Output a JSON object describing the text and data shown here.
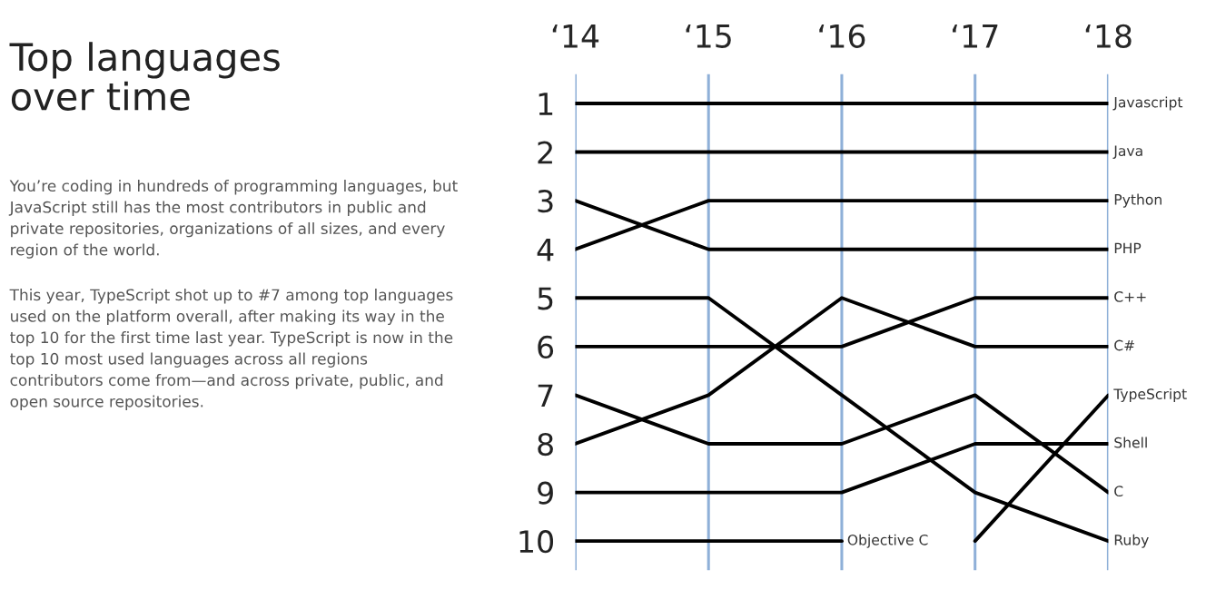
{
  "chart_data": {
    "type": "line",
    "title": "Top languages over time",
    "annotations": [
      "You’re coding in hundreds of programming languages, but JavaScript still has the most contributors in public and private repositories, organizations of all sizes, and every region of the world.",
      "This year, TypeScript shot up to #7 among top languages used on the platform overall, after making its way in the top 10 for the first time last year. TypeScript is now in the top 10 most used languages across all regions contributors come from—and across private, public, and open source repositories."
    ],
    "categories": [
      "‘14",
      "‘15",
      "‘16",
      "‘17",
      "‘18"
    ],
    "ylim": [
      10.6,
      0.4
    ],
    "yticks": [
      1,
      2,
      3,
      4,
      5,
      6,
      7,
      8,
      9,
      10
    ],
    "grid": "x",
    "legend": false,
    "marker": "none",
    "line_style": "solid",
    "series": [
      {
        "name": "Javascript",
        "color": "#000000",
        "values": [
          1,
          1,
          1,
          1,
          1
        ]
      },
      {
        "name": "Java",
        "color": "#000000",
        "values": [
          2,
          2,
          2,
          2,
          2
        ]
      },
      {
        "name": "Python",
        "color": "#000000",
        "values": [
          4,
          3,
          3,
          3,
          3
        ]
      },
      {
        "name": "PHP",
        "color": "#000000",
        "values": [
          3,
          4,
          4,
          4,
          4
        ]
      },
      {
        "name": "C++",
        "color": "#000000",
        "values": [
          6,
          6,
          6,
          5,
          5
        ]
      },
      {
        "name": "C#",
        "color": "#000000",
        "values": [
          8,
          7,
          5,
          6,
          6
        ]
      },
      {
        "name": "TypeScript",
        "color": "#000000",
        "values": [
          null,
          null,
          null,
          10,
          7
        ]
      },
      {
        "name": "Shell",
        "color": "#000000",
        "values": [
          9,
          9,
          9,
          8,
          8
        ]
      },
      {
        "name": "C",
        "color": "#000000",
        "values": [
          7,
          8,
          8,
          7,
          9
        ]
      },
      {
        "name": "Ruby",
        "color": "#000000",
        "values": [
          5,
          5,
          7,
          9,
          10
        ]
      },
      {
        "name": "Objective C",
        "color": "#000000",
        "values": [
          10,
          10,
          10,
          null,
          null
        ]
      }
    ]
  }
}
